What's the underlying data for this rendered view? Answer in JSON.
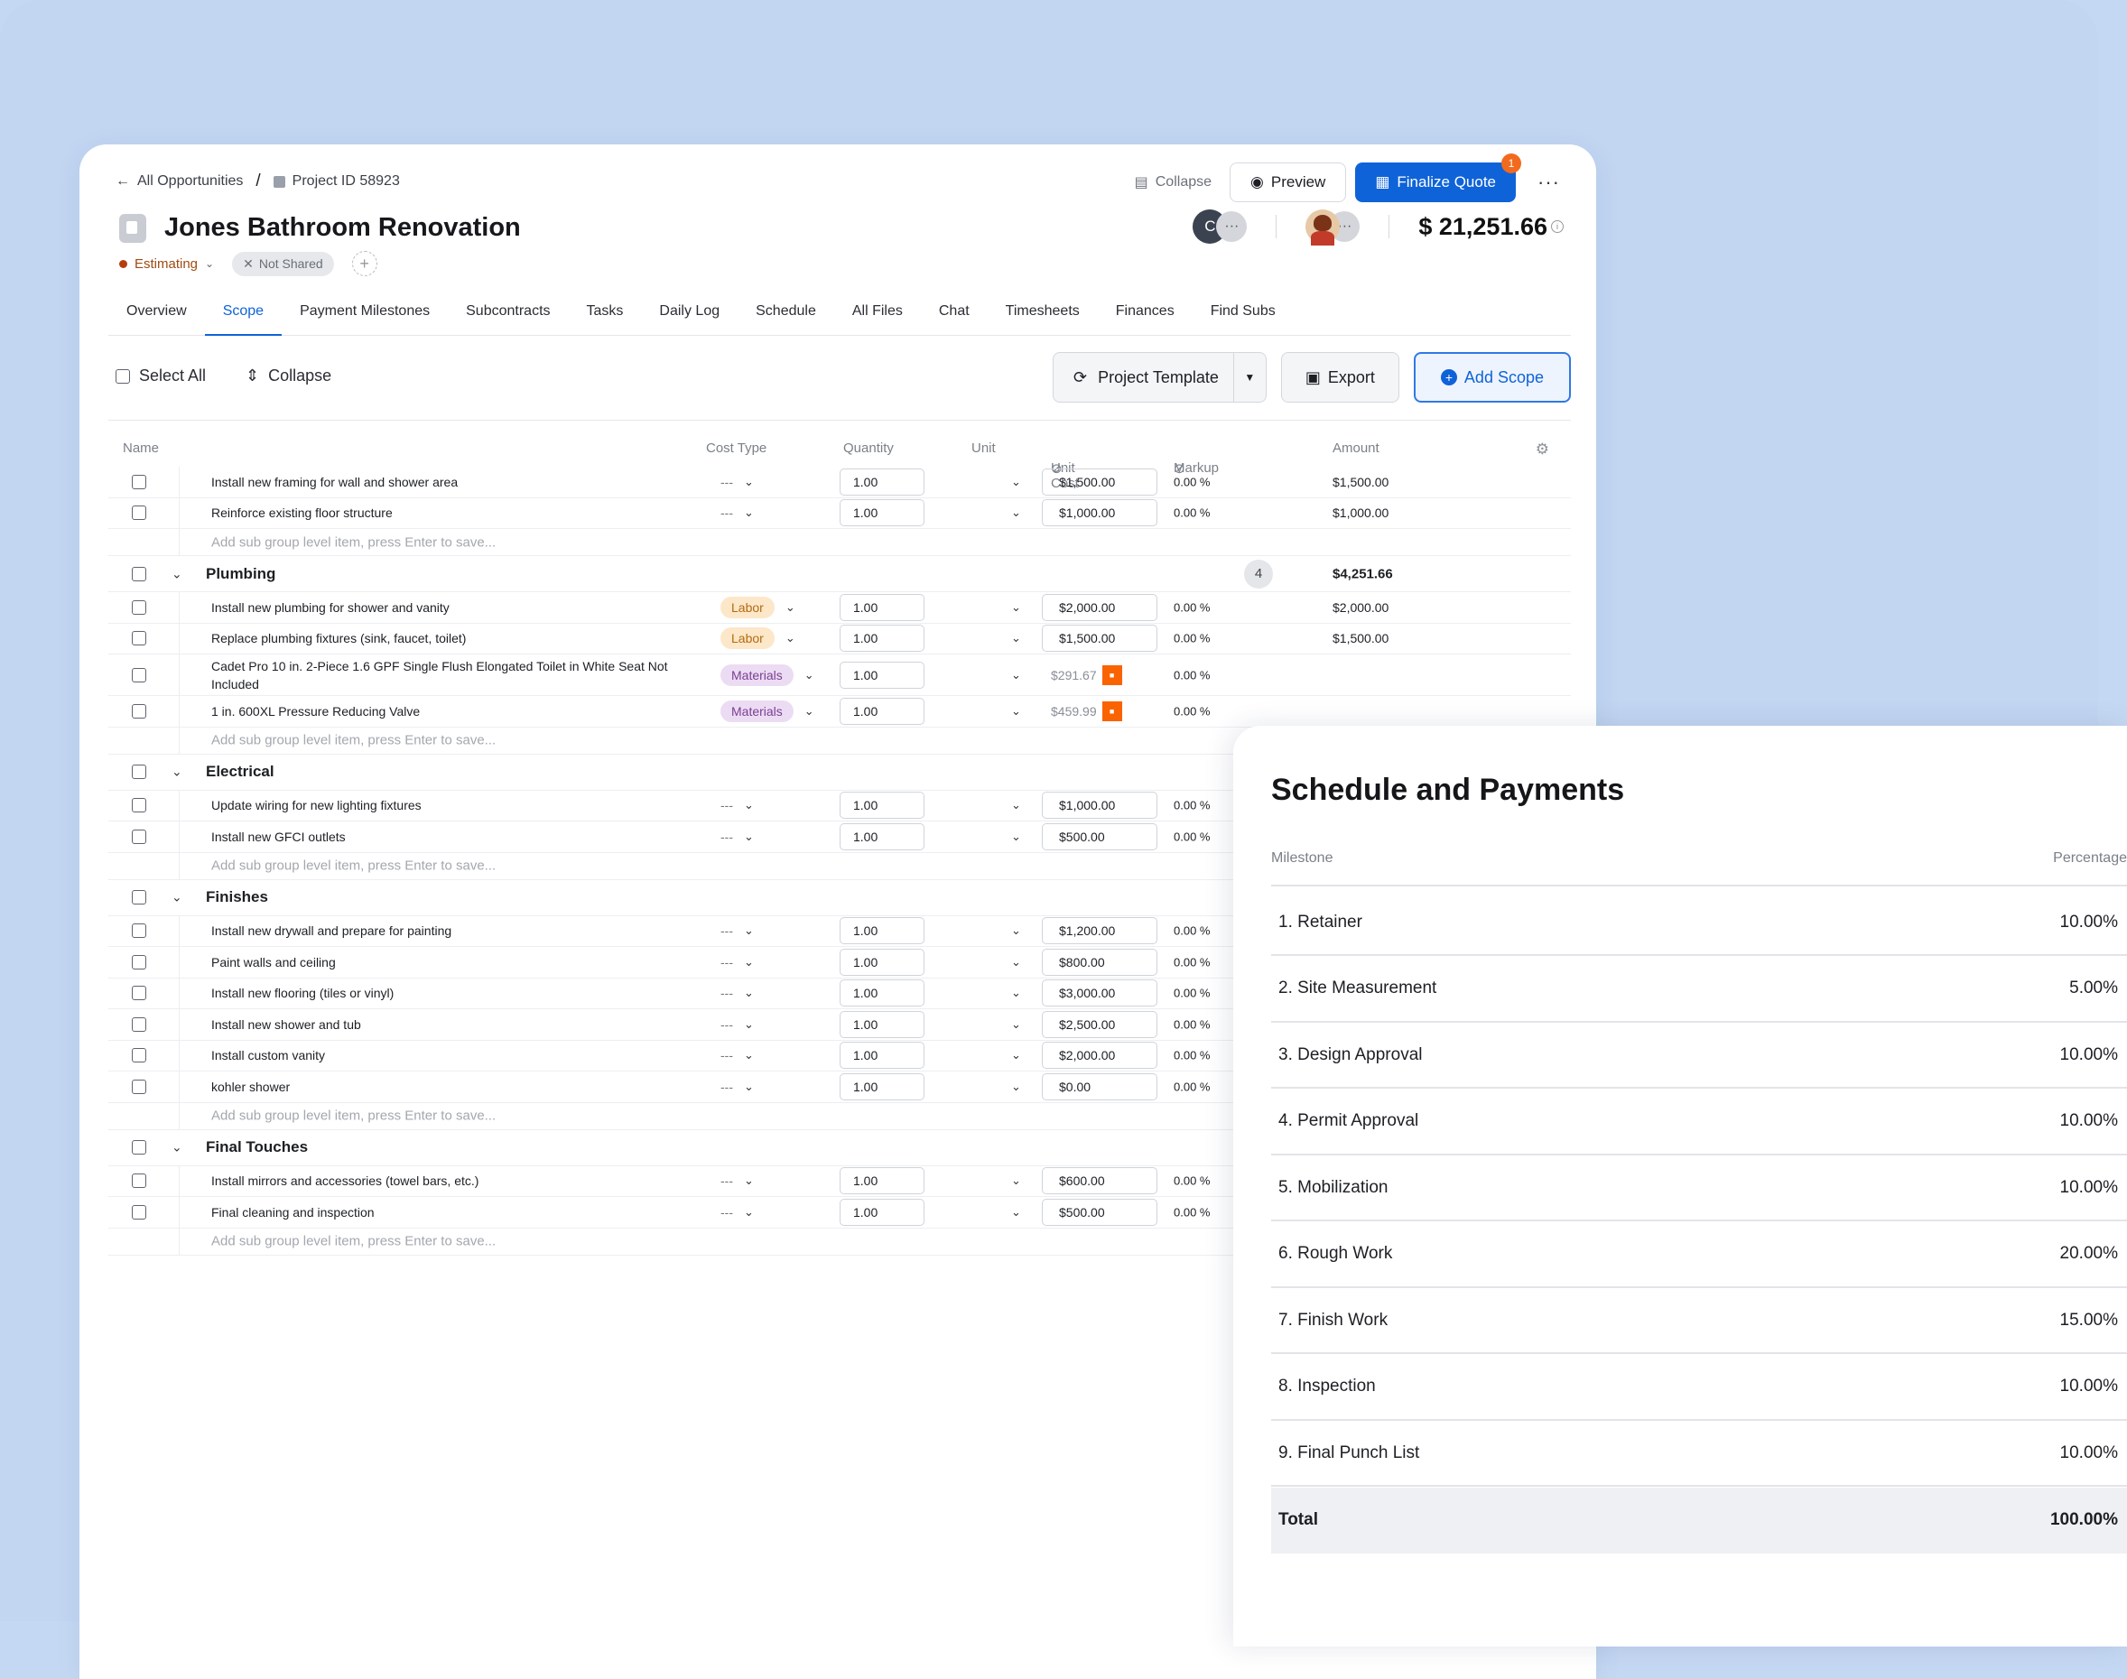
{
  "breadcrumb": {
    "back_label": "All Opportunities",
    "sep": "/",
    "project": "Project ID 58923"
  },
  "project": {
    "title": "Jones Bathroom Renovation",
    "status": "Estimating",
    "shared": "Not Shared",
    "add": "+"
  },
  "header_actions": {
    "collapse": "Collapse",
    "preview": "Preview",
    "finalize": "Finalize Quote",
    "finalize_badge": "1",
    "more": "···"
  },
  "team": {
    "avatar_initial": "C",
    "more": "···"
  },
  "total_amount": "$ 21,251.66",
  "tabs": [
    "Overview",
    "Scope",
    "Payment Milestones",
    "Subcontracts",
    "Tasks",
    "Daily Log",
    "Schedule",
    "All Files",
    "Chat",
    "Timesheets",
    "Finances",
    "Find Subs"
  ],
  "toolbar": {
    "select_all": "Select All",
    "collapse": "Collapse",
    "project_template": "Project Template",
    "export": "Export",
    "add_scope": "Add Scope"
  },
  "columns": {
    "name": "Name",
    "cost_type": "Cost Type",
    "quantity": "Quantity",
    "unit": "Unit",
    "unit_cost": "Unit Cost",
    "markup": "Markup",
    "amount": "Amount"
  },
  "add_hint": "Add sub group level item, press Enter to save...",
  "rows": [
    {
      "kind": "item",
      "name": "Install new framing for wall and shower area",
      "ct": "---",
      "qty": "1.00",
      "uc": "$1,500.00",
      "mk": "0.00 %",
      "amt": "$1,500.00"
    },
    {
      "kind": "item",
      "name": "Reinforce existing floor structure",
      "ct": "---",
      "qty": "1.00",
      "uc": "$1,000.00",
      "mk": "0.00 %",
      "amt": "$1,000.00"
    },
    {
      "kind": "add"
    },
    {
      "kind": "group",
      "name": "Plumbing",
      "count": "4",
      "amt": "$4,251.66"
    },
    {
      "kind": "item",
      "name": "Install new plumbing for shower and vanity",
      "ct": "Labor",
      "qty": "1.00",
      "uc": "$2,000.00",
      "mk": "0.00 %",
      "amt": "$2,000.00"
    },
    {
      "kind": "item",
      "name": "Replace plumbing fixtures (sink, faucet, toilet)",
      "ct": "Labor",
      "qty": "1.00",
      "uc": "$1,500.00",
      "mk": "0.00 %",
      "amt": "$1,500.00"
    },
    {
      "kind": "item",
      "tall": true,
      "name": "Cadet Pro 10 in. 2-Piece 1.6 GPF Single Flush Elongated Toilet in White Seat Not Included",
      "ct": "Materials",
      "qty": "1.00",
      "uc": "$291.67",
      "hd": true,
      "mk": "0.00 %",
      "amt": ""
    },
    {
      "kind": "item",
      "name": "1 in. 600XL Pressure Reducing Valve",
      "ct": "Materials",
      "qty": "1.00",
      "uc": "$459.99",
      "hd": true,
      "mk": "0.00 %",
      "amt": ""
    },
    {
      "kind": "add"
    },
    {
      "kind": "group",
      "name": "Electrical"
    },
    {
      "kind": "item",
      "name": "Update wiring for new lighting fixtures",
      "ct": "---",
      "qty": "1.00",
      "uc": "$1,000.00",
      "mk": "0.00 %",
      "amt": ""
    },
    {
      "kind": "item",
      "name": "Install new GFCI outlets",
      "ct": "---",
      "qty": "1.00",
      "uc": "$500.00",
      "mk": "0.00 %",
      "amt": ""
    },
    {
      "kind": "add"
    },
    {
      "kind": "group",
      "name": "Finishes"
    },
    {
      "kind": "item",
      "name": "Install new drywall and prepare for painting",
      "ct": "---",
      "qty": "1.00",
      "uc": "$1,200.00",
      "mk": "0.00 %",
      "amt": ""
    },
    {
      "kind": "item",
      "name": "Paint walls and ceiling",
      "ct": "---",
      "qty": "1.00",
      "uc": "$800.00",
      "mk": "0.00 %",
      "amt": ""
    },
    {
      "kind": "item",
      "name": "Install new flooring (tiles or vinyl)",
      "ct": "---",
      "qty": "1.00",
      "uc": "$3,000.00",
      "mk": "0.00 %",
      "amt": ""
    },
    {
      "kind": "item",
      "name": "Install new shower and tub",
      "ct": "---",
      "qty": "1.00",
      "uc": "$2,500.00",
      "mk": "0.00 %",
      "amt": ""
    },
    {
      "kind": "item",
      "name": "Install custom vanity",
      "ct": "---",
      "qty": "1.00",
      "uc": "$2,000.00",
      "mk": "0.00 %",
      "amt": ""
    },
    {
      "kind": "item",
      "name": "kohler shower",
      "ct": "---",
      "qty": "1.00",
      "uc": "$0.00",
      "mk": "0.00 %",
      "amt": ""
    },
    {
      "kind": "add"
    },
    {
      "kind": "group",
      "name": "Final Touches"
    },
    {
      "kind": "item",
      "name": "Install mirrors and accessories (towel bars, etc.)",
      "ct": "---",
      "qty": "1.00",
      "uc": "$600.00",
      "mk": "0.00 %",
      "amt": ""
    },
    {
      "kind": "item",
      "name": "Final cleaning and inspection",
      "ct": "---",
      "qty": "1.00",
      "uc": "$500.00",
      "mk": "0.00 %",
      "amt": ""
    },
    {
      "kind": "add"
    }
  ],
  "schedule": {
    "title": "Schedule and Payments",
    "col_milestone": "Milestone",
    "col_percentage": "Percentage",
    "milestones": [
      {
        "m": "1. Retainer",
        "p": "10.00%"
      },
      {
        "m": "2. Site Measurement",
        "p": "5.00%"
      },
      {
        "m": "3. Design Approval",
        "p": "10.00%"
      },
      {
        "m": "4. Permit Approval",
        "p": "10.00%"
      },
      {
        "m": "5. Mobilization",
        "p": "10.00%"
      },
      {
        "m": "6. Rough Work",
        "p": "20.00%"
      },
      {
        "m": "7. Finish Work",
        "p": "15.00%"
      },
      {
        "m": "8. Inspection",
        "p": "10.00%"
      },
      {
        "m": "9. Final Punch List",
        "p": "10.00%"
      }
    ],
    "total_label": "Total",
    "total_value": "100.00%"
  }
}
